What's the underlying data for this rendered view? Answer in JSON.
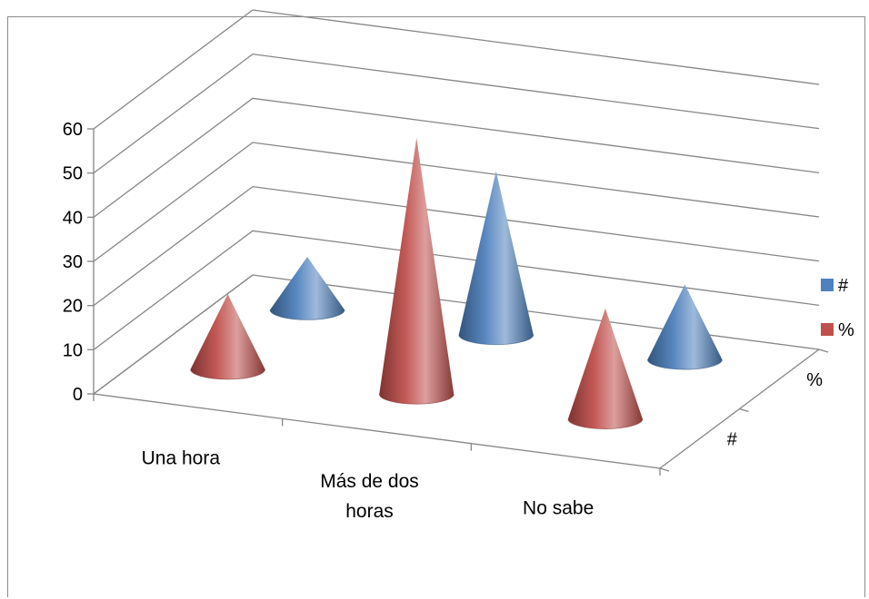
{
  "chart_data": {
    "type": "bar",
    "style": "3d-cone",
    "title": "",
    "xlabel": "",
    "ylabel": "",
    "categories": [
      "Una hora",
      "Más de dos horas",
      "No sabe"
    ],
    "category_lines": [
      [
        "Una hora"
      ],
      [
        "Más de dos",
        "horas"
      ],
      [
        "No sabe"
      ]
    ],
    "series": [
      {
        "name": "#",
        "values": [
          12,
          37,
          17
        ],
        "color": "#4f81bd"
      },
      {
        "name": "%",
        "values": [
          17,
          58,
          25
        ],
        "color": "#c0504d"
      }
    ],
    "ylim": [
      0,
      60
    ],
    "yticks": [
      0,
      10,
      20,
      30,
      40,
      50,
      60
    ],
    "depth_labels": [
      "%",
      "#"
    ],
    "grid": true,
    "legend": "right"
  }
}
